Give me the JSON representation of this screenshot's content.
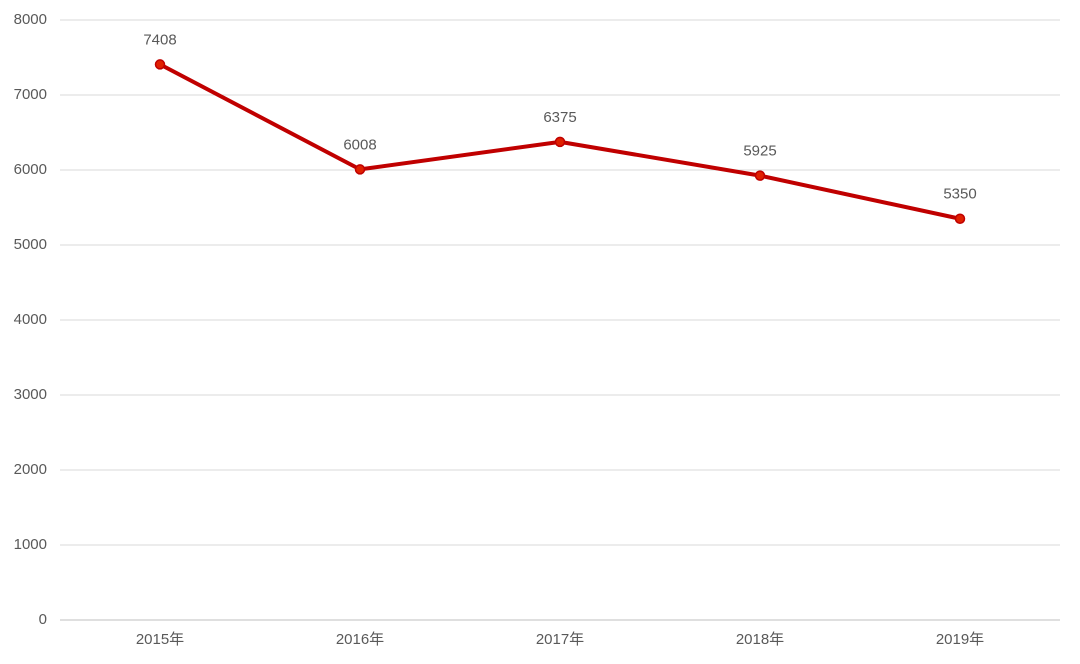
{
  "chart_data": {
    "type": "line",
    "categories": [
      "2015年",
      "2016年",
      "2017年",
      "2018年",
      "2019年"
    ],
    "values": [
      7408,
      6008,
      6375,
      5925,
      5350
    ],
    "color": "#c00000",
    "marker_color": "#e02000",
    "ylim": [
      0,
      8000
    ],
    "yticks": [
      0,
      1000,
      2000,
      3000,
      4000,
      5000,
      6000,
      7000,
      8000
    ],
    "grid": true,
    "data_labels": true
  }
}
